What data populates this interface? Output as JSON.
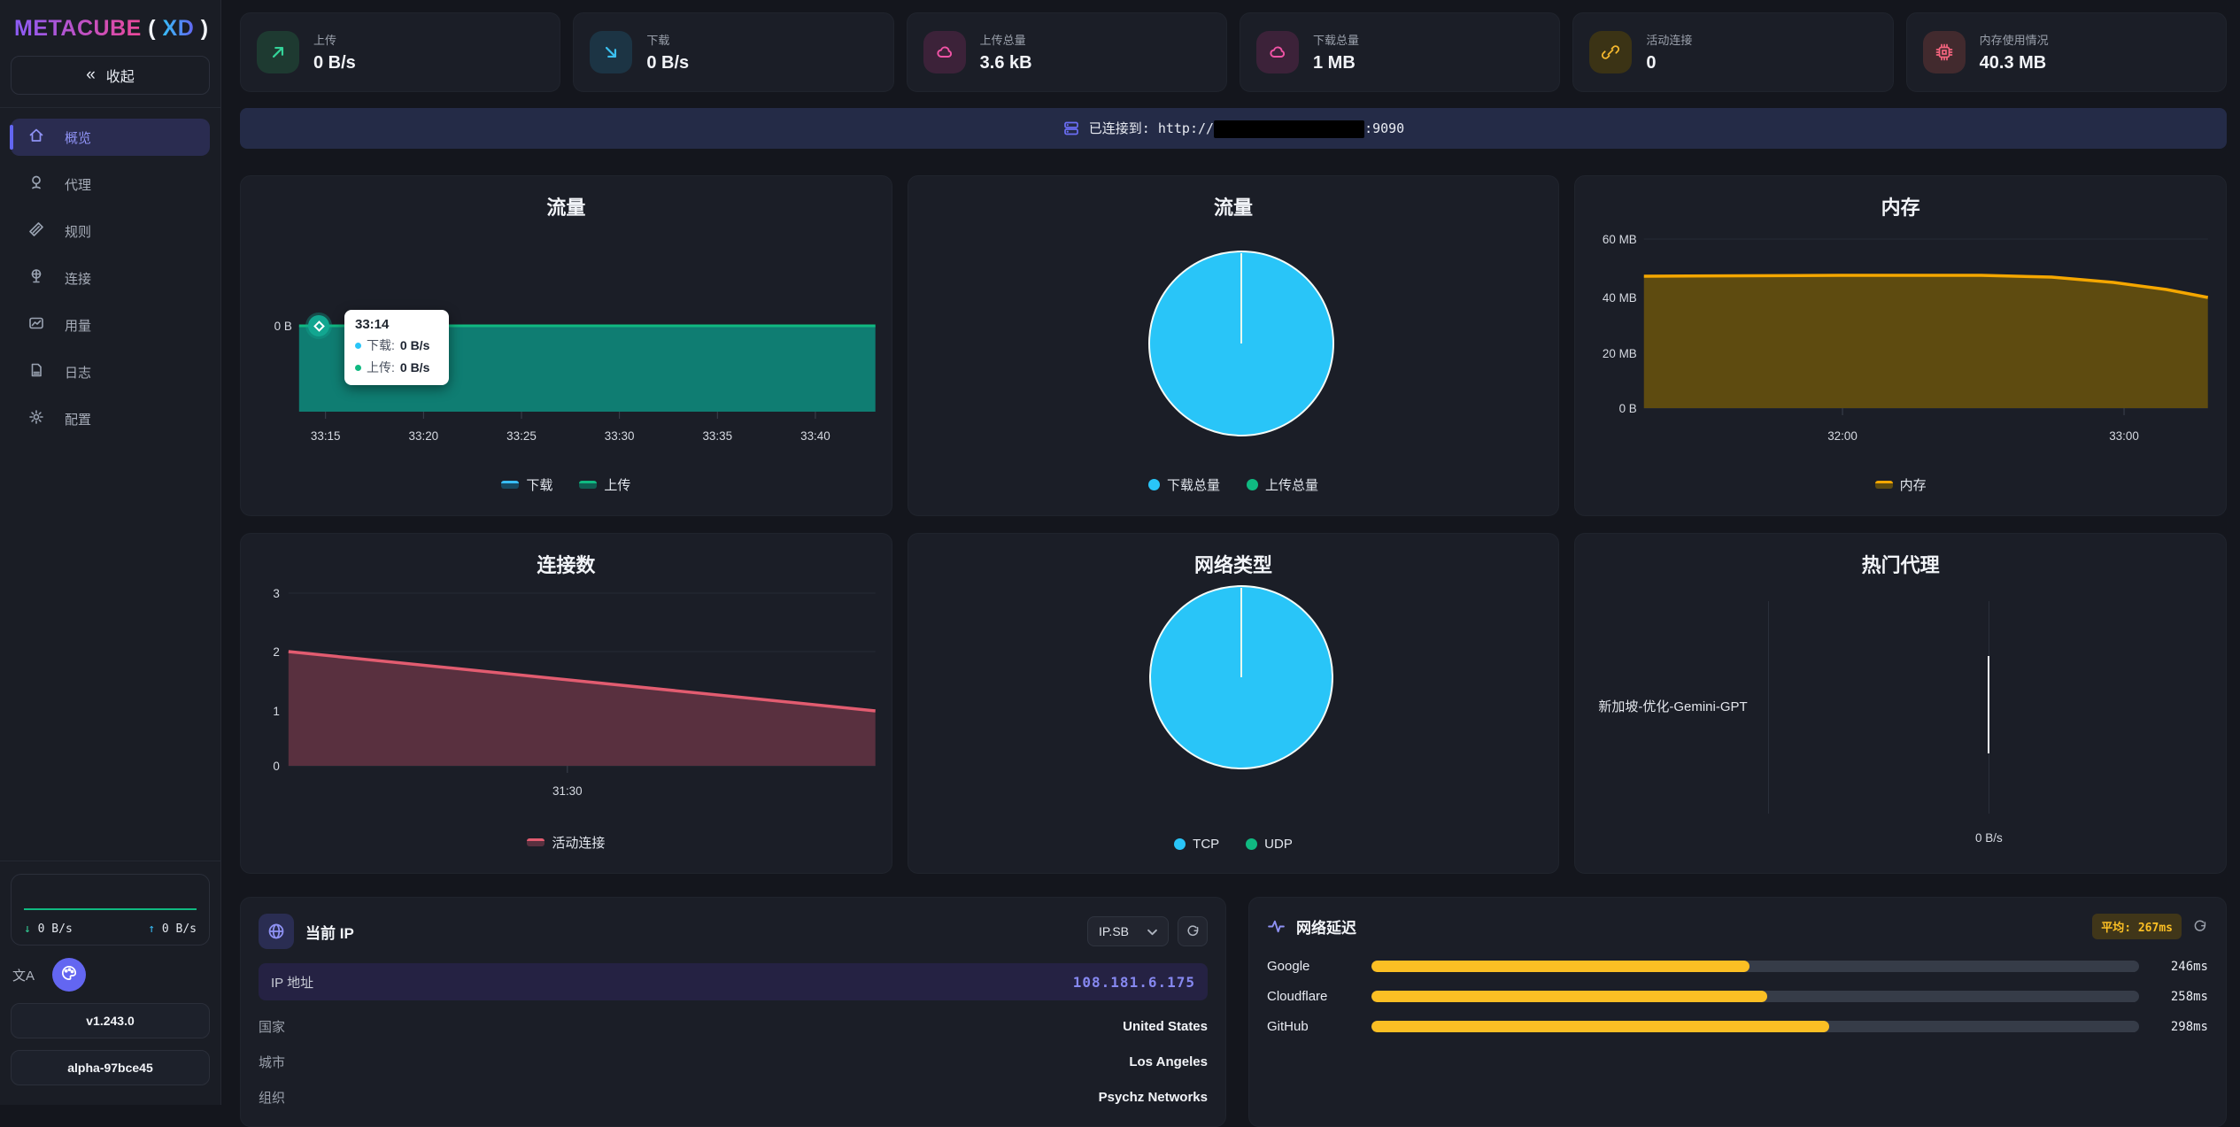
{
  "app": {
    "brand": "METACUBE",
    "paren_open": "(",
    "brand_suffix": "XD",
    "paren_close": ")"
  },
  "sidebar": {
    "collapse_icon": "«",
    "collapse_label": "收起",
    "nav": [
      {
        "label": "概览",
        "icon": "home-icon",
        "active": true
      },
      {
        "label": "代理",
        "icon": "proxy-icon",
        "active": false
      },
      {
        "label": "规则",
        "icon": "ruler-icon",
        "active": false
      },
      {
        "label": "连接",
        "icon": "globe-stand-icon",
        "active": false
      },
      {
        "label": "用量",
        "icon": "usage-chart-icon",
        "active": false
      },
      {
        "label": "日志",
        "icon": "document-icon",
        "active": false
      },
      {
        "label": "配置",
        "icon": "gear-icon",
        "active": false
      }
    ],
    "mini_traffic": {
      "down_arrow": "↓",
      "down_value": "0 B/s",
      "up_arrow": "↑",
      "up_value": "0 B/s"
    },
    "lang_icon_text": "文A",
    "version": "v1.243.0",
    "build": "alpha-97bce45"
  },
  "stats": [
    {
      "label": "上传",
      "value": "0 B/s",
      "icon": "arrow-up-right-icon",
      "accent": "#34d399"
    },
    {
      "label": "下载",
      "value": "0 B/s",
      "icon": "arrow-down-right-icon",
      "accent": "#3bc0f0"
    },
    {
      "label": "上传总量",
      "value": "3.6 kB",
      "icon": "cloud-icon",
      "accent": "#f053a5"
    },
    {
      "label": "下载总量",
      "value": "1 MB",
      "icon": "cloud-icon",
      "accent": "#f053a5"
    },
    {
      "label": "活动连接",
      "value": "0",
      "icon": "link-icon",
      "accent": "#f5b82e"
    },
    {
      "label": "内存使用情况",
      "value": "40.3 MB",
      "icon": "cpu-icon",
      "accent": "#f4647e"
    }
  ],
  "banner": {
    "prefix": "已连接到: ",
    "url_prefix": "http://",
    "url_suffix": ":9090",
    "host_redacted": true,
    "icon": "server-icon"
  },
  "chart_data": [
    {
      "type": "line",
      "title": "流量",
      "unit": "B/s",
      "x_ticks": [
        "33:15",
        "33:20",
        "33:25",
        "33:30",
        "33:35",
        "33:40"
      ],
      "y_ticks": [
        "0 B"
      ],
      "series": [
        {
          "name": "下载",
          "color": "#38bdf8",
          "values": [
            0,
            0,
            0,
            0,
            0,
            0
          ]
        },
        {
          "name": "上传",
          "color": "#10b981",
          "values": [
            0,
            0,
            0,
            0,
            0,
            0
          ]
        }
      ],
      "tooltip": {
        "time": "33:14",
        "rows": [
          {
            "label": "下载:",
            "value": "0 B/s",
            "color": "#38bdf8"
          },
          {
            "label": "上传:",
            "value": "0 B/s",
            "color": "#10b981"
          }
        ]
      },
      "legend_position": "bottom",
      "grid": false
    },
    {
      "type": "pie",
      "title": "流量",
      "slices": [
        {
          "label": "下载总量",
          "color": "#29c5f8",
          "value_bytes": 1048576,
          "fraction": 0.997
        },
        {
          "label": "上传总量",
          "color": "#10b981",
          "value_bytes": 3600,
          "fraction": 0.003
        }
      ],
      "legend_position": "bottom"
    },
    {
      "type": "area",
      "title": "内存",
      "y_ticks": [
        "60 MB",
        "40 MB",
        "20 MB",
        "0 B"
      ],
      "ylim_mb": [
        0,
        60
      ],
      "x_ticks": [
        "32:00",
        "33:00"
      ],
      "series": [
        {
          "name": "内存",
          "color": "#f5a700",
          "values_mb": [
            46.5,
            46.5,
            46.5,
            46.5,
            46.4,
            46,
            45,
            43.5,
            42,
            40.3
          ]
        }
      ],
      "legend_position": "bottom",
      "grid": true
    },
    {
      "type": "area",
      "title": "连接数",
      "y_ticks": [
        "3",
        "2",
        "1",
        "0"
      ],
      "ylim": [
        0,
        3
      ],
      "x_ticks": [
        "31:30"
      ],
      "series": [
        {
          "name": "活动连接",
          "color": "#e25c70",
          "values": [
            2,
            1
          ]
        }
      ],
      "legend_position": "bottom",
      "grid": true
    },
    {
      "type": "pie",
      "title": "网络类型",
      "slices": [
        {
          "label": "TCP",
          "color": "#29c5f8",
          "fraction": 0.998
        },
        {
          "label": "UDP",
          "color": "#10b981",
          "fraction": 0.002
        }
      ],
      "legend_position": "bottom"
    },
    {
      "type": "bar",
      "title": "热门代理",
      "orientation": "horizontal",
      "unit": "B/s",
      "categories": [
        "新加坡-优化-Gemini-GPT"
      ],
      "values": [
        0
      ],
      "x_ticks": [
        "0 B/s"
      ]
    }
  ],
  "current_ip": {
    "title": "当前 IP",
    "icon": "globe-icon",
    "provider_selected": "IP.SB",
    "ip_label": "IP 地址",
    "ip_value": "108.181.6.175",
    "fields": [
      {
        "label": "国家",
        "value": "United States"
      },
      {
        "label": "城市",
        "value": "Los Angeles"
      },
      {
        "label": "组织",
        "value": "Psychz Networks"
      }
    ]
  },
  "latency": {
    "title": "网络延迟",
    "icon": "pulse-icon",
    "average_badge": "平均: 267ms",
    "max_scale_ms": 500,
    "bar_color": "#fbbf24",
    "rows": [
      {
        "name": "Google",
        "value": "246ms",
        "ms": 246
      },
      {
        "name": "Cloudflare",
        "value": "258ms",
        "ms": 258
      },
      {
        "name": "GitHub",
        "value": "298ms",
        "ms": 298
      }
    ]
  }
}
